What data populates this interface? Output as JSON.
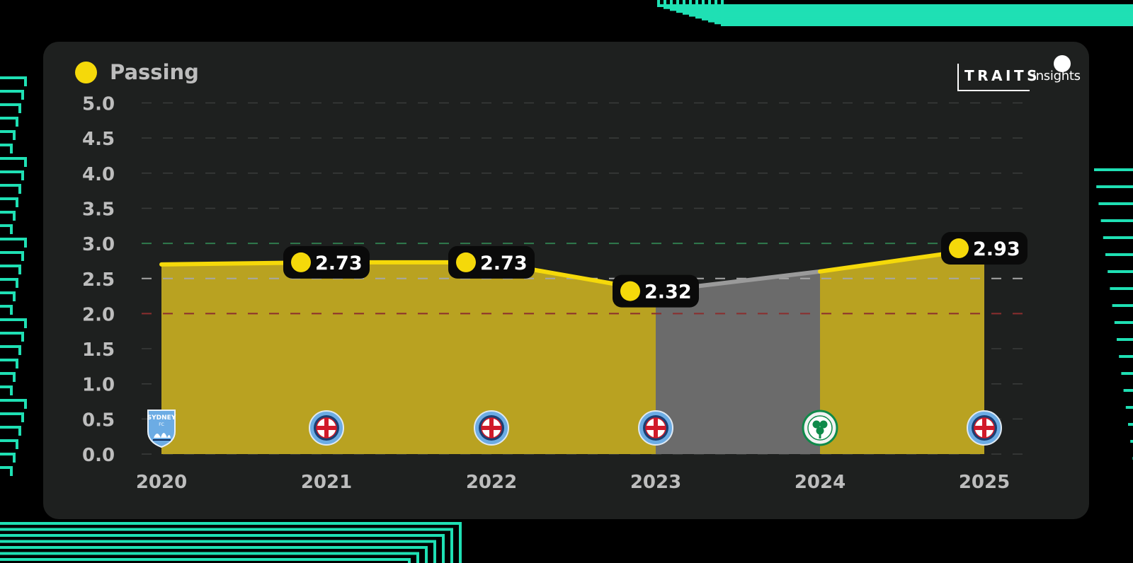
{
  "legend": {
    "label": "Passing",
    "color": "#f5d90a"
  },
  "brand": {
    "word1": "TRAITS",
    "word2": "insights"
  },
  "colors": {
    "card": "#1e201f",
    "accent": "#f5d90a",
    "fill_yellow": "#b9a221",
    "fill_gray": "#6b6b6b",
    "line_gray": "#9a9a9a",
    "tick_label": "#bdbdbd",
    "grid": "#3a3c3b",
    "ref_high": "#2f7a4d",
    "ref_mid": "#a7a7a7",
    "ref_low": "#8b2e2e",
    "background_pattern": "#1fe0b4"
  },
  "chart_data": {
    "type": "area",
    "x": [
      "2020",
      "2021",
      "2022",
      "2023",
      "2024",
      "2025"
    ],
    "yticks": [
      "5.0",
      "4.5",
      "4.0",
      "3.5",
      "3.0",
      "2.5",
      "2.0",
      "1.5",
      "1.0",
      "0.5",
      "0.0"
    ],
    "ylim": [
      0,
      5
    ],
    "series": [
      {
        "name": "Passing",
        "values": [
          2.7,
          2.73,
          2.73,
          2.32,
          2.6,
          2.93
        ],
        "segment_colors": [
          "yellow",
          "yellow",
          "yellow",
          "gray",
          "yellow"
        ]
      }
    ],
    "data_labels": [
      {
        "index": 1,
        "text": "2.73"
      },
      {
        "index": 2,
        "text": "2.73"
      },
      {
        "index": 3,
        "text": "2.32"
      },
      {
        "index": 5,
        "text": "2.93"
      }
    ],
    "reference_lines": [
      {
        "value": 3.0,
        "color": "green"
      },
      {
        "value": 2.5,
        "color": "gray"
      },
      {
        "value": 2.0,
        "color": "red"
      }
    ],
    "grid": true,
    "club_badges": [
      {
        "year": "2020",
        "icon": "sydney-fc-crest-icon",
        "text": "SYDNEY FC"
      },
      {
        "year": "2021",
        "icon": "melbourne-city-crest-icon"
      },
      {
        "year": "2022",
        "icon": "melbourne-city-crest-icon"
      },
      {
        "year": "2023",
        "icon": "melbourne-city-crest-icon"
      },
      {
        "year": "2024",
        "icon": "celtic-crest-icon"
      },
      {
        "year": "2025",
        "icon": "melbourne-city-crest-icon"
      }
    ]
  }
}
